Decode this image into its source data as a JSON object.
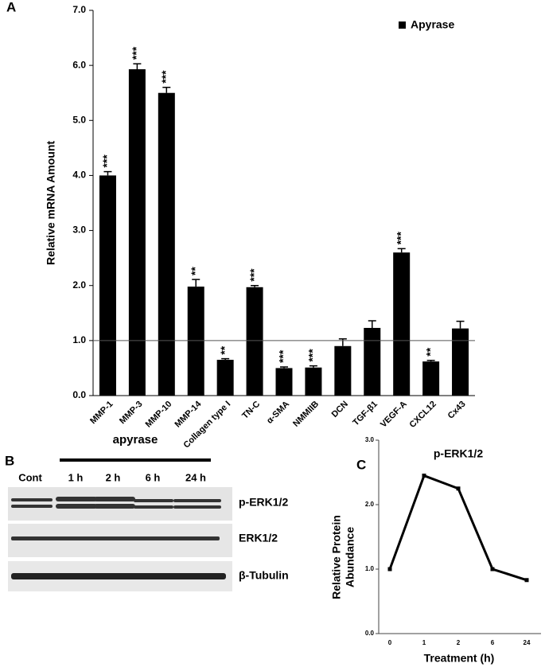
{
  "panels": [
    "A",
    "B",
    "C"
  ],
  "chart_data": [
    {
      "type": "bar",
      "ylabel": "Relative mRNA Amount",
      "categories": [
        "MMP-1",
        "MMP-3",
        "MMP-10",
        "MMP-14",
        "Collagen type I",
        "TN-C",
        "α-SMA",
        "NMMIIB",
        "DCN",
        "TGF-β1",
        "VEGF-A",
        "CXCL12",
        "Cx43"
      ],
      "series": [
        {
          "name": "Apyrase",
          "color": "#000000",
          "values": [
            4.0,
            5.93,
            5.5,
            1.98,
            0.65,
            1.97,
            0.5,
            0.51,
            0.9,
            1.23,
            2.6,
            0.62,
            1.22
          ],
          "errors": [
            0.07,
            0.1,
            0.1,
            0.13,
            0.02,
            0.03,
            0.02,
            0.03,
            0.13,
            0.13,
            0.07,
            0.02,
            0.13
          ]
        }
      ],
      "annotations": [
        "***",
        "***",
        "***",
        "**",
        "**",
        "***",
        "***",
        "***",
        null,
        null,
        "***",
        "**",
        null
      ],
      "reference_line": 1,
      "ylim": [
        0,
        7
      ],
      "yticks": [
        {
          "value": 0,
          "label": "0.0"
        },
        {
          "value": 1,
          "label": "1.0"
        },
        {
          "value": 2,
          "label": "2.0"
        },
        {
          "value": 3,
          "label": "3.0"
        },
        {
          "value": 4,
          "label": "4.0"
        },
        {
          "value": 5,
          "label": "5.0"
        },
        {
          "value": 6,
          "label": "6.0"
        },
        {
          "value": 7,
          "label": "7.0"
        }
      ],
      "legend": "upper right"
    },
    {
      "type": "line",
      "title": "p-ERK1/2",
      "xlabel": "Treatment (h)",
      "ylabel": [
        "Relative Protein",
        "Abundance"
      ],
      "categories": [
        "0",
        "1",
        "2",
        "6",
        "24"
      ],
      "series": [
        {
          "name": "p-ERK1/2",
          "color": "#000000",
          "values": [
            1.0,
            2.45,
            2.25,
            1.0,
            0.83
          ]
        }
      ],
      "ylim": [
        0,
        3
      ],
      "yticks": [
        {
          "value": 0,
          "label": "0.0"
        },
        {
          "value": 1,
          "label": "1.0"
        },
        {
          "value": 2,
          "label": "2.0"
        },
        {
          "value": 3,
          "label": "3.0"
        }
      ]
    }
  ],
  "blot": {
    "header": "apyrase",
    "lanes": [
      "Cont",
      "1 h",
      "2 h",
      "6 h",
      "24 h"
    ],
    "rows": [
      "p-ERK1/2",
      "ERK1/2",
      "β-Tubulin"
    ]
  }
}
